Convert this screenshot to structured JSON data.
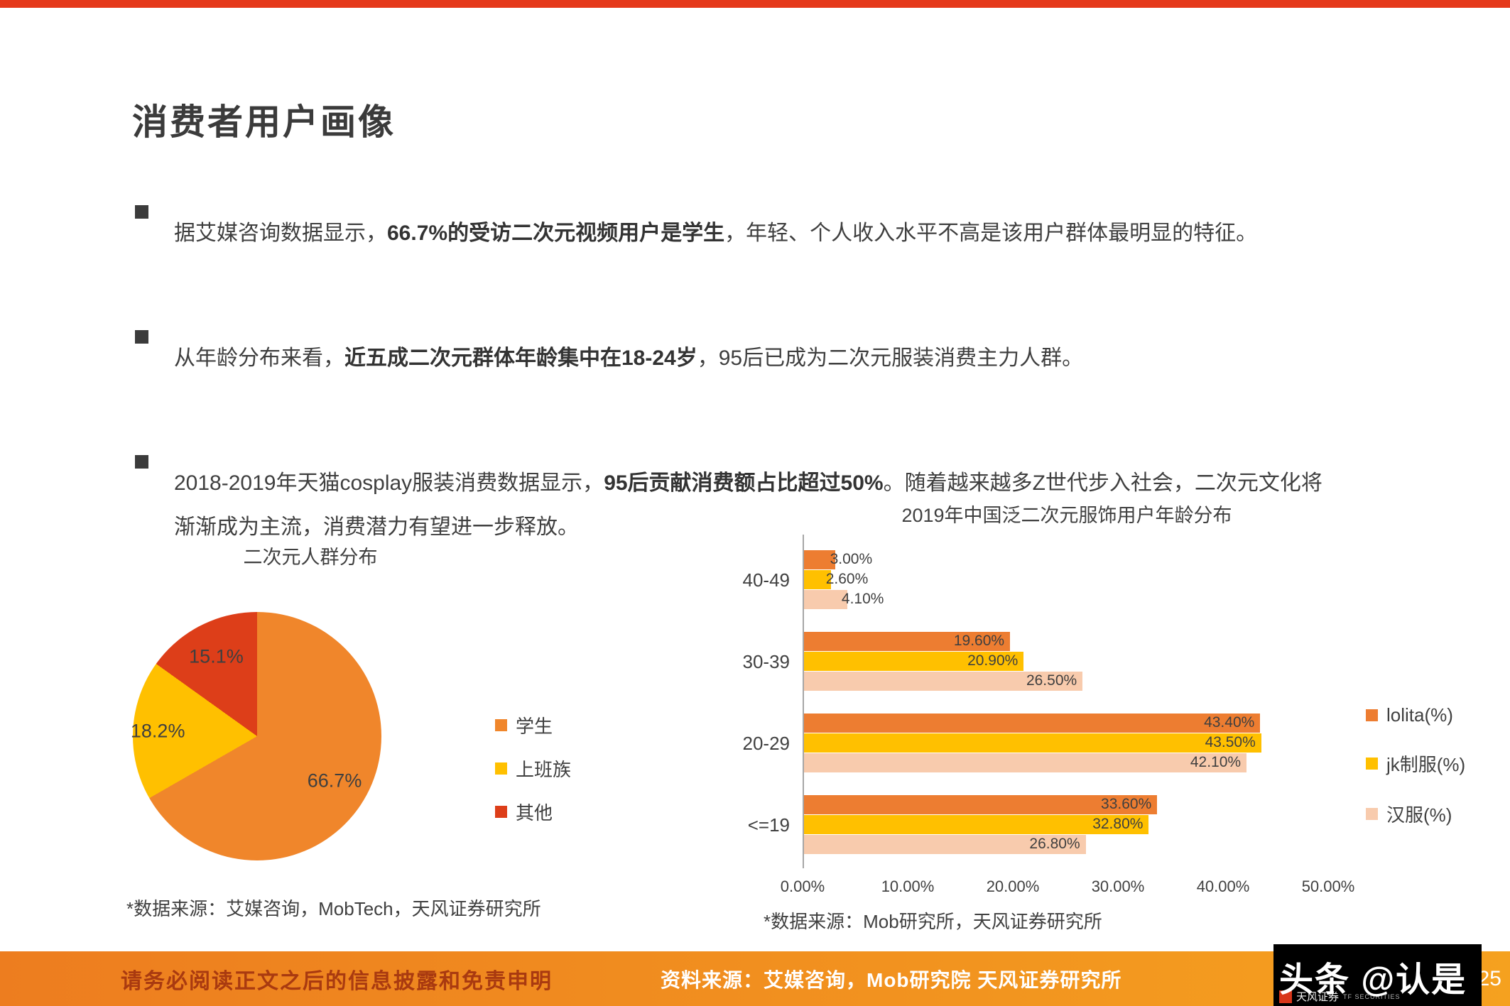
{
  "slide": {
    "title": "消费者用户画像"
  },
  "bullets": [
    {
      "parts": [
        {
          "t": "据艾媒咨询数据显示，",
          "b": false
        },
        {
          "t": "66.7%的受访二次元视频用户是学生",
          "b": true
        },
        {
          "t": "，年轻、个人收入水平不高是该用户群体最明显的特征。",
          "b": false
        }
      ]
    },
    {
      "parts": [
        {
          "t": "从年龄分布来看，",
          "b": false
        },
        {
          "t": "近五成二次元群体年龄集中在18-24岁",
          "b": true
        },
        {
          "t": "，95后已成为二次元服装消费主力人群。",
          "b": false
        }
      ]
    },
    {
      "parts": [
        {
          "t": "2018-2019年天猫cosplay服装消费数据显示，",
          "b": false
        },
        {
          "t": "95后贡献消费额占比超过50%",
          "b": true
        },
        {
          "t": "。随着越来越多Z世代步入社会，二次元文化将渐渐成为主流，消费潜力有望进一步释放。",
          "b": false
        }
      ]
    }
  ],
  "chart_data": [
    {
      "type": "pie",
      "title": "二次元人群分布",
      "labels": [
        "学生",
        "上班族",
        "其他"
      ],
      "values": [
        66.7,
        18.2,
        15.1
      ],
      "value_labels": [
        "66.7%",
        "18.2%",
        "15.1%"
      ],
      "colors": [
        "#F0862B",
        "#FFC000",
        "#DD3E19"
      ],
      "legend_position": "right",
      "source": "*数据来源：艾媒咨询，MobTech，天风证券研究所"
    },
    {
      "type": "bar",
      "orientation": "horizontal",
      "title": "2019年中国泛二次元服饰用户年龄分布",
      "categories": [
        "40-49",
        "30-39",
        "20-29",
        "<=19"
      ],
      "series": [
        {
          "name": "lolita(%)",
          "color": "#ED7D31",
          "values": [
            3.0,
            19.6,
            43.4,
            33.6
          ]
        },
        {
          "name": "jk制服(%)",
          "color": "#FFC000",
          "values": [
            2.6,
            20.9,
            43.5,
            32.8
          ]
        },
        {
          "name": "汉服(%)",
          "color": "#F8CBAD",
          "values": [
            4.1,
            26.5,
            42.1,
            26.8
          ]
        }
      ],
      "x_ticks": [
        "0.00%",
        "10.00%",
        "20.00%",
        "30.00%",
        "40.00%",
        "50.00%"
      ],
      "xlim": [
        0,
        50
      ],
      "grid": false,
      "legend_position": "right",
      "source": "*数据来源：Mob研究所，天风证券研究所"
    }
  ],
  "footer": {
    "disclaimer": "请务必阅读正文之后的信息披露和免责申明",
    "source": "资料来源：艾媒咨询，Mob研究院 天风证券研究所",
    "watermark": "头条 @认是",
    "logo_cn": "天风证券",
    "logo_en": "TF SECURITIES",
    "page": "25"
  }
}
